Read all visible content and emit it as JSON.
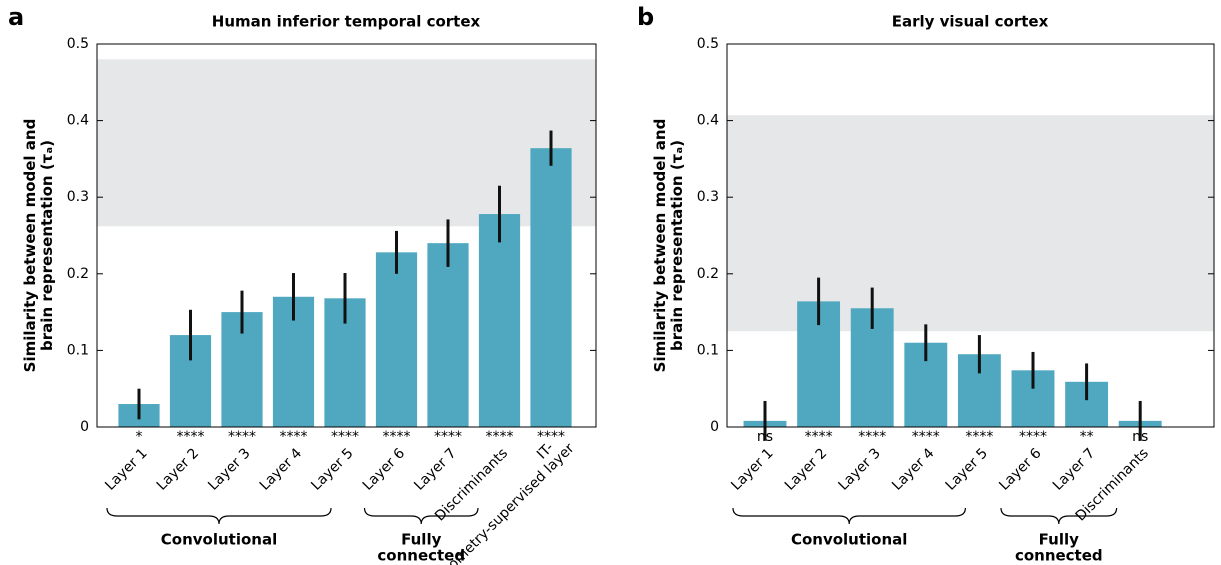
{
  "chart_data": [
    {
      "type": "bar",
      "panel": "a",
      "title": "Human inferior temporal cortex",
      "ylabel": [
        "Similarity between model and",
        "brain representation (τₐ)"
      ],
      "categories": [
        "Layer 1",
        "Layer 2",
        "Layer 3",
        "Layer 4",
        "Layer 5",
        "Layer 6",
        "Layer 7",
        "Discriminants",
        "IT-geometry-supervised layer"
      ],
      "values": [
        0.03,
        0.12,
        0.15,
        0.17,
        0.168,
        0.228,
        0.24,
        0.278,
        0.364
      ],
      "errors": [
        0.02,
        0.033,
        0.028,
        0.031,
        0.033,
        0.028,
        0.031,
        0.037,
        0.023
      ],
      "significance": [
        "*",
        "****",
        "****",
        "****",
        "****",
        "****",
        "****",
        "****",
        "****"
      ],
      "noise_ceiling": [
        0.262,
        0.48
      ],
      "groups": [
        {
          "label": [
            "Convolutional"
          ],
          "span": [
            0,
            4
          ]
        },
        {
          "label": [
            "Fully",
            "connected"
          ],
          "span": [
            5,
            6
          ]
        }
      ],
      "color": "#4fa8bf",
      "band_color": "#e6e7e8",
      "ylim": [
        0,
        0.5
      ],
      "yticks": [
        0,
        0.1,
        0.2,
        0.3,
        0.4,
        0.5
      ]
    },
    {
      "type": "bar",
      "panel": "b",
      "title": "Early visual cortex",
      "ylabel": [
        "Similarity between model and",
        "brain representation (τₐ)"
      ],
      "categories": [
        "Layer 1",
        "Layer 2",
        "Layer 3",
        "Layer 4",
        "Layer 5",
        "Layer 6",
        "Layer 7",
        "Discriminants"
      ],
      "values": [
        0.008,
        0.164,
        0.155,
        0.11,
        0.095,
        0.074,
        0.059,
        0.008
      ],
      "errors": [
        0.026,
        0.031,
        0.027,
        0.024,
        0.025,
        0.024,
        0.024,
        0.026
      ],
      "significance": [
        "ns",
        "****",
        "****",
        "****",
        "****",
        "****",
        "**",
        "ns"
      ],
      "noise_ceiling": [
        0.125,
        0.407
      ],
      "groups": [
        {
          "label": [
            "Convolutional"
          ],
          "span": [
            0,
            4
          ]
        },
        {
          "label": [
            "Fully",
            "connected"
          ],
          "span": [
            5,
            6
          ]
        }
      ],
      "color": "#4fa8bf",
      "band_color": "#e6e7e8",
      "ylim": [
        0,
        0.5
      ],
      "yticks": [
        0,
        0.1,
        0.2,
        0.3,
        0.4,
        0.5
      ]
    }
  ]
}
